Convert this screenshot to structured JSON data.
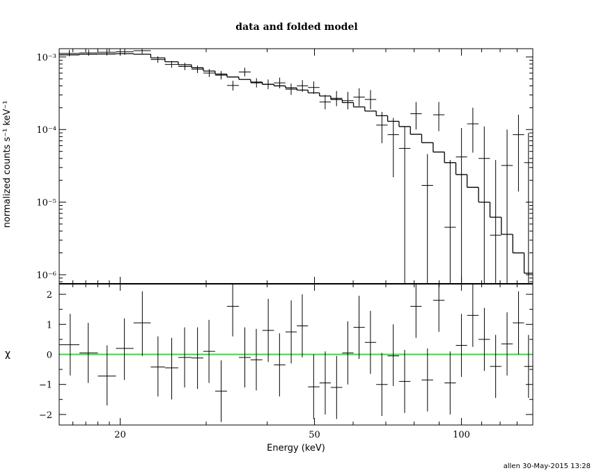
{
  "chart_data": [
    {
      "type": "scatter",
      "panel": "spectrum",
      "title": "data and folded model",
      "xlabel": "",
      "ylabel": "normalized counts s⁻¹ keV⁻¹",
      "xscale": "log",
      "yscale": "log",
      "xlim": [
        15,
        140
      ],
      "ylim": [
        7.5e-07,
        0.0013
      ],
      "y_ticks": [
        {
          "value": 0.001,
          "label": "10⁻³"
        },
        {
          "value": 0.0001,
          "label": "10⁻⁴"
        },
        {
          "value": 1e-05,
          "label": "10⁻⁵"
        },
        {
          "value": 1e-06,
          "label": "10⁻⁶"
        }
      ],
      "x_ticks": [
        {
          "value": 20,
          "label": ""
        },
        {
          "value": 50,
          "label": ""
        },
        {
          "value": 100,
          "label": ""
        }
      ],
      "data": [
        {
          "xlo": 15.0,
          "xhi": 16.5,
          "y": 0.00112,
          "ylo": 0.00102,
          "yhi": 0.00125
        },
        {
          "xlo": 16.5,
          "xhi": 18.0,
          "y": 0.00114,
          "ylo": 0.00104,
          "yhi": 0.00126
        },
        {
          "xlo": 18.0,
          "xhi": 19.6,
          "y": 0.00116,
          "ylo": 0.00105,
          "yhi": 0.00128
        },
        {
          "xlo": 19.6,
          "xhi": 21.3,
          "y": 0.00118,
          "ylo": 0.00107,
          "yhi": 0.0013
        },
        {
          "xlo": 21.3,
          "xhi": 23.1,
          "y": 0.00122,
          "ylo": 0.0011,
          "yhi": 0.00134
        },
        {
          "xlo": 23.1,
          "xhi": 24.7,
          "y": 0.00092,
          "ylo": 0.00083,
          "yhi": 0.00102
        },
        {
          "xlo": 24.7,
          "xhi": 26.3,
          "y": 0.00079,
          "ylo": 0.00071,
          "yhi": 0.00088
        },
        {
          "xlo": 26.3,
          "xhi": 28.0,
          "y": 0.00074,
          "ylo": 0.00066,
          "yhi": 0.00083
        },
        {
          "xlo": 28.0,
          "xhi": 29.6,
          "y": 0.00068,
          "ylo": 0.0006,
          "yhi": 0.00076
        },
        {
          "xlo": 29.6,
          "xhi": 31.3,
          "y": 0.0006,
          "ylo": 0.00053,
          "yhi": 0.00068
        },
        {
          "xlo": 31.3,
          "xhi": 33.1,
          "y": 0.00056,
          "ylo": 0.00049,
          "yhi": 0.00064
        },
        {
          "xlo": 33.1,
          "xhi": 35.0,
          "y": 0.000405,
          "ylo": 0.000345,
          "yhi": 0.00047
        },
        {
          "xlo": 35.0,
          "xhi": 37.0,
          "y": 0.00062,
          "ylo": 0.00054,
          "yhi": 0.00071
        },
        {
          "xlo": 37.0,
          "xhi": 39.1,
          "y": 0.00044,
          "ylo": 0.00038,
          "yhi": 0.00051
        },
        {
          "xlo": 39.1,
          "xhi": 41.3,
          "y": 0.00042,
          "ylo": 0.00036,
          "yhi": 0.00049
        },
        {
          "xlo": 41.3,
          "xhi": 43.6,
          "y": 0.00044,
          "ylo": 0.00037,
          "yhi": 0.00052
        },
        {
          "xlo": 43.6,
          "xhi": 46.0,
          "y": 0.00036,
          "ylo": 0.0003,
          "yhi": 0.00043
        },
        {
          "xlo": 46.0,
          "xhi": 48.5,
          "y": 0.0004,
          "ylo": 0.00033,
          "yhi": 0.00048
        },
        {
          "xlo": 48.5,
          "xhi": 51.2,
          "y": 0.00038,
          "ylo": 0.00031,
          "yhi": 0.00046
        },
        {
          "xlo": 51.2,
          "xhi": 54.0,
          "y": 0.00024,
          "ylo": 0.00019,
          "yhi": 0.0003
        },
        {
          "xlo": 54.0,
          "xhi": 57.0,
          "y": 0.00027,
          "ylo": 0.00021,
          "yhi": 0.00034
        },
        {
          "xlo": 57.0,
          "xhi": 60.1,
          "y": 0.00025,
          "ylo": 0.00019,
          "yhi": 0.00033
        },
        {
          "xlo": 60.1,
          "xhi": 63.4,
          "y": 0.00028,
          "ylo": 0.00021,
          "yhi": 0.00037
        },
        {
          "xlo": 63.4,
          "xhi": 66.9,
          "y": 0.00026,
          "ylo": 0.00019,
          "yhi": 0.00035
        },
        {
          "xlo": 66.9,
          "xhi": 70.6,
          "y": 0.000115,
          "ylo": 6.5e-05,
          "yhi": 0.000175
        },
        {
          "xlo": 70.6,
          "xhi": 74.5,
          "y": 8.5e-05,
          "ylo": 2.2e-05,
          "yhi": 0.000145
        },
        {
          "xlo": 74.5,
          "xhi": 78.6,
          "y": 5.5e-05,
          "ylo": 7.5e-07,
          "yhi": 0.00011
        },
        {
          "xlo": 78.6,
          "xhi": 82.9,
          "y": 0.000165,
          "ylo": 0.0001,
          "yhi": 0.00024
        },
        {
          "xlo": 82.9,
          "xhi": 87.5,
          "y": 1.7e-05,
          "ylo": 7.5e-07,
          "yhi": 4.6e-05
        },
        {
          "xlo": 87.5,
          "xhi": 92.3,
          "y": 0.00016,
          "ylo": 9.5e-05,
          "yhi": 0.00024
        },
        {
          "xlo": 92.3,
          "xhi": 97.4,
          "y": 4.5e-06,
          "ylo": 7.5e-07,
          "yhi": 3.8e-05
        },
        {
          "xlo": 97.4,
          "xhi": 102.7,
          "y": 4.2e-05,
          "ylo": 7.5e-07,
          "yhi": 0.000105
        },
        {
          "xlo": 102.7,
          "xhi": 108.4,
          "y": 0.00012,
          "ylo": 4.8e-05,
          "yhi": 0.0002
        },
        {
          "xlo": 108.4,
          "xhi": 114.4,
          "y": 4e-05,
          "ylo": 7.5e-07,
          "yhi": 0.00011
        },
        {
          "xlo": 114.4,
          "xhi": 120.7,
          "y": 3.5e-06,
          "ylo": 7.5e-07,
          "yhi": 3.8e-05
        },
        {
          "xlo": 120.7,
          "xhi": 127.4,
          "y": 3.2e-05,
          "ylo": 7.5e-07,
          "yhi": 0.0001
        },
        {
          "xlo": 127.4,
          "xhi": 134.4,
          "y": 8.5e-05,
          "ylo": 1.4e-05,
          "yhi": 0.00016
        },
        {
          "xlo": 134.4,
          "xhi": 140.0,
          "y": 3.5e-05,
          "ylo": 7.5e-07,
          "yhi": 9e-05
        }
      ],
      "model": [
        {
          "xlo": 15.0,
          "xhi": 16.5,
          "y": 0.00107
        },
        {
          "xlo": 16.5,
          "xhi": 18.0,
          "y": 0.00109
        },
        {
          "xlo": 18.0,
          "xhi": 19.6,
          "y": 0.0011
        },
        {
          "xlo": 19.6,
          "xhi": 21.3,
          "y": 0.00111
        },
        {
          "xlo": 21.3,
          "xhi": 23.1,
          "y": 0.00109
        },
        {
          "xlo": 23.1,
          "xhi": 24.7,
          "y": 0.00097
        },
        {
          "xlo": 24.7,
          "xhi": 26.3,
          "y": 0.00086
        },
        {
          "xlo": 26.3,
          "xhi": 28.0,
          "y": 0.00078
        },
        {
          "xlo": 28.0,
          "xhi": 29.6,
          "y": 0.00071
        },
        {
          "xlo": 29.6,
          "xhi": 31.3,
          "y": 0.00064
        },
        {
          "xlo": 31.3,
          "xhi": 33.1,
          "y": 0.00058
        },
        {
          "xlo": 33.1,
          "xhi": 35.0,
          "y": 0.00053
        },
        {
          "xlo": 35.0,
          "xhi": 37.0,
          "y": 0.00049
        },
        {
          "xlo": 37.0,
          "xhi": 39.1,
          "y": 0.00045
        },
        {
          "xlo": 39.1,
          "xhi": 41.3,
          "y": 0.00042
        },
        {
          "xlo": 41.3,
          "xhi": 43.6,
          "y": 0.0004
        },
        {
          "xlo": 43.6,
          "xhi": 46.0,
          "y": 0.000375
        },
        {
          "xlo": 46.0,
          "xhi": 48.5,
          "y": 0.00035
        },
        {
          "xlo": 48.5,
          "xhi": 51.2,
          "y": 0.00032
        },
        {
          "xlo": 51.2,
          "xhi": 54.0,
          "y": 0.00029
        },
        {
          "xlo": 54.0,
          "xhi": 57.0,
          "y": 0.00026
        },
        {
          "xlo": 57.0,
          "xhi": 60.1,
          "y": 0.000235
        },
        {
          "xlo": 60.1,
          "xhi": 63.4,
          "y": 0.000205
        },
        {
          "xlo": 63.4,
          "xhi": 66.9,
          "y": 0.00018
        },
        {
          "xlo": 66.9,
          "xhi": 70.6,
          "y": 0.000155
        },
        {
          "xlo": 70.6,
          "xhi": 74.5,
          "y": 0.00013
        },
        {
          "xlo": 74.5,
          "xhi": 78.6,
          "y": 0.00011
        },
        {
          "xlo": 78.6,
          "xhi": 82.9,
          "y": 8.6e-05
        },
        {
          "xlo": 82.9,
          "xhi": 87.5,
          "y": 6.6e-05
        },
        {
          "xlo": 87.5,
          "xhi": 92.3,
          "y": 4.9e-05
        },
        {
          "xlo": 92.3,
          "xhi": 97.4,
          "y": 3.5e-05
        },
        {
          "xlo": 97.4,
          "xhi": 102.7,
          "y": 2.4e-05
        },
        {
          "xlo": 102.7,
          "xhi": 108.4,
          "y": 1.6e-05
        },
        {
          "xlo": 108.4,
          "xhi": 114.4,
          "y": 1e-05
        },
        {
          "xlo": 114.4,
          "xhi": 120.7,
          "y": 6.2e-06
        },
        {
          "xlo": 120.7,
          "xhi": 127.4,
          "y": 3.6e-06
        },
        {
          "xlo": 127.4,
          "xhi": 134.4,
          "y": 2e-06
        },
        {
          "xlo": 134.4,
          "xhi": 140.0,
          "y": 1.05e-06
        }
      ]
    },
    {
      "type": "scatter",
      "panel": "residuals",
      "xlabel": "Energy (keV)",
      "ylabel": "χ",
      "xscale": "log",
      "xlim": [
        15,
        140
      ],
      "ylim": [
        -2.35,
        2.35
      ],
      "x_ticks": [
        {
          "value": 20,
          "label": "20"
        },
        {
          "value": 50,
          "label": "50"
        },
        {
          "value": 100,
          "label": "100"
        }
      ],
      "y_ticks": [
        {
          "value": 2,
          "label": "2"
        },
        {
          "value": 1,
          "label": "1"
        },
        {
          "value": 0,
          "label": "0"
        },
        {
          "value": -1,
          "label": "−1"
        },
        {
          "value": -2,
          "label": "−2"
        }
      ],
      "reference_line": {
        "y": 0,
        "color": "#33dd33"
      },
      "data": [
        {
          "x": 15.8,
          "xlo": 15.0,
          "xhi": 16.5,
          "y": 0.32,
          "ylo": -0.7,
          "yhi": 1.35
        },
        {
          "x": 17.2,
          "xlo": 16.5,
          "xhi": 18.0,
          "y": 0.05,
          "ylo": -0.95,
          "yhi": 1.05
        },
        {
          "x": 18.8,
          "xlo": 18.0,
          "xhi": 19.6,
          "y": -0.72,
          "ylo": -1.7,
          "yhi": 0.3
        },
        {
          "x": 20.4,
          "xlo": 19.6,
          "xhi": 21.3,
          "y": 0.2,
          "ylo": -0.85,
          "yhi": 1.2
        },
        {
          "x": 22.2,
          "xlo": 21.3,
          "xhi": 23.1,
          "y": 1.05,
          "ylo": -0.05,
          "yhi": 2.1
        },
        {
          "x": 23.9,
          "xlo": 23.1,
          "xhi": 24.7,
          "y": -0.42,
          "ylo": -1.4,
          "yhi": 0.6
        },
        {
          "x": 25.5,
          "xlo": 24.7,
          "xhi": 26.3,
          "y": -0.45,
          "ylo": -1.5,
          "yhi": 0.55
        },
        {
          "x": 27.1,
          "xlo": 26.3,
          "xhi": 28.0,
          "y": -0.1,
          "ylo": -1.1,
          "yhi": 0.9
        },
        {
          "x": 28.8,
          "xlo": 28.0,
          "xhi": 29.6,
          "y": -0.12,
          "ylo": -1.15,
          "yhi": 0.9
        },
        {
          "x": 30.4,
          "xlo": 29.6,
          "xhi": 31.3,
          "y": 0.1,
          "ylo": -0.95,
          "yhi": 1.15
        },
        {
          "x": 32.2,
          "xlo": 31.3,
          "xhi": 33.1,
          "y": -1.22,
          "ylo": -2.25,
          "yhi": -0.2
        },
        {
          "x": 34.0,
          "xlo": 33.1,
          "xhi": 35.0,
          "y": 1.6,
          "ylo": 0.6,
          "yhi": 2.35
        },
        {
          "x": 36.0,
          "xlo": 35.0,
          "xhi": 37.0,
          "y": -0.1,
          "ylo": -1.1,
          "yhi": 0.9
        },
        {
          "x": 38.0,
          "xlo": 37.0,
          "xhi": 39.1,
          "y": -0.18,
          "ylo": -1.2,
          "yhi": 0.85
        },
        {
          "x": 40.2,
          "xlo": 39.1,
          "xhi": 41.3,
          "y": 0.8,
          "ylo": -0.25,
          "yhi": 1.85
        },
        {
          "x": 42.4,
          "xlo": 41.3,
          "xhi": 43.6,
          "y": -0.35,
          "ylo": -1.4,
          "yhi": 0.7
        },
        {
          "x": 44.8,
          "xlo": 43.6,
          "xhi": 46.0,
          "y": 0.75,
          "ylo": -0.3,
          "yhi": 1.8
        },
        {
          "x": 47.2,
          "xlo": 46.0,
          "xhi": 48.5,
          "y": 0.95,
          "ylo": -0.1,
          "yhi": 2.0
        },
        {
          "x": 49.8,
          "xlo": 48.5,
          "xhi": 51.2,
          "y": -1.08,
          "ylo": -2.15,
          "yhi": 0.0
        },
        {
          "x": 52.6,
          "xlo": 51.2,
          "xhi": 54.0,
          "y": -0.95,
          "ylo": -2.0,
          "yhi": 0.1
        },
        {
          "x": 55.5,
          "xlo": 54.0,
          "xhi": 57.0,
          "y": -1.1,
          "ylo": -2.15,
          "yhi": -0.05
        },
        {
          "x": 58.5,
          "xlo": 57.0,
          "xhi": 60.1,
          "y": 0.05,
          "ylo": -1.0,
          "yhi": 1.1
        },
        {
          "x": 61.7,
          "xlo": 60.1,
          "xhi": 63.4,
          "y": 0.9,
          "ylo": -0.15,
          "yhi": 1.95
        },
        {
          "x": 65.1,
          "xlo": 63.4,
          "xhi": 66.9,
          "y": 0.4,
          "ylo": -0.65,
          "yhi": 1.45
        },
        {
          "x": 68.7,
          "xlo": 66.9,
          "xhi": 70.6,
          "y": -1.0,
          "ylo": -2.05,
          "yhi": 0.05
        },
        {
          "x": 72.5,
          "xlo": 70.6,
          "xhi": 74.5,
          "y": -0.05,
          "ylo": -1.05,
          "yhi": 1.0
        },
        {
          "x": 76.5,
          "xlo": 74.5,
          "xhi": 78.6,
          "y": -0.9,
          "ylo": -1.95,
          "yhi": 0.15
        },
        {
          "x": 80.7,
          "xlo": 78.6,
          "xhi": 82.9,
          "y": 1.6,
          "ylo": 0.55,
          "yhi": 2.35
        },
        {
          "x": 85.2,
          "xlo": 82.9,
          "xhi": 87.5,
          "y": -0.85,
          "ylo": -1.9,
          "yhi": 0.2
        },
        {
          "x": 89.9,
          "xlo": 87.5,
          "xhi": 92.3,
          "y": 1.8,
          "ylo": 0.75,
          "yhi": 2.35
        },
        {
          "x": 94.8,
          "xlo": 92.3,
          "xhi": 97.4,
          "y": -0.95,
          "ylo": -2.0,
          "yhi": 0.1
        },
        {
          "x": 100.0,
          "xlo": 97.4,
          "xhi": 102.7,
          "y": 0.3,
          "ylo": -0.75,
          "yhi": 1.35
        },
        {
          "x": 105.5,
          "xlo": 102.7,
          "xhi": 108.4,
          "y": 1.3,
          "ylo": 0.25,
          "yhi": 2.35
        },
        {
          "x": 111.4,
          "xlo": 108.4,
          "xhi": 114.4,
          "y": 0.5,
          "ylo": -0.55,
          "yhi": 1.55
        },
        {
          "x": 117.5,
          "xlo": 114.4,
          "xhi": 120.7,
          "y": -0.4,
          "ylo": -1.45,
          "yhi": 0.65
        },
        {
          "x": 124.0,
          "xlo": 120.7,
          "xhi": 127.4,
          "y": 0.35,
          "ylo": -0.7,
          "yhi": 1.4
        },
        {
          "x": 130.9,
          "xlo": 127.4,
          "xhi": 134.4,
          "y": 1.05,
          "ylo": 0.0,
          "yhi": 2.1
        },
        {
          "x": 137.2,
          "xlo": 134.4,
          "xhi": 140.0,
          "y": -0.4,
          "ylo": -1.45,
          "yhi": 0.65
        }
      ]
    }
  ],
  "footer": {
    "stamp": "allen 30-May-2015 13:28"
  },
  "colors": {
    "axis": "#000000",
    "data": "#000000",
    "model": "#000000",
    "zero_line": "#33dd33"
  }
}
